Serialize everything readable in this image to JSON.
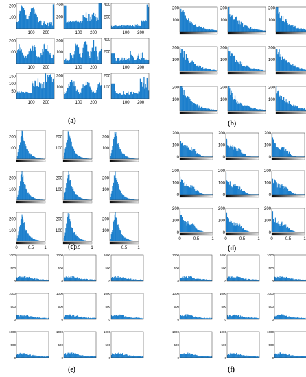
{
  "colors": {
    "bar": "#1c7fcc",
    "axis": "#333333"
  },
  "chart_data": [
    {
      "type": "bar",
      "label": "(a)",
      "grid": [
        3,
        3
      ],
      "xticks": [
        100,
        200
      ],
      "xlim": [
        0,
        255
      ],
      "cells": [
        {
          "yticks": [
            100,
            200
          ],
          "ylim": [
            0,
            220
          ],
          "profile": "a0"
        },
        {
          "yticks": [
            200,
            400
          ],
          "ylim": [
            0,
            420
          ],
          "profile": "a1"
        },
        {
          "yticks": [
            200,
            400
          ],
          "ylim": [
            0,
            420
          ],
          "profile": "a2"
        },
        {
          "yticks": [
            100,
            200
          ],
          "ylim": [
            0,
            220
          ],
          "profile": "a3"
        },
        {
          "yticks": [
            100,
            200
          ],
          "ylim": [
            0,
            220
          ],
          "profile": "a4"
        },
        {
          "yticks": [
            200,
            400
          ],
          "ylim": [
            0,
            420
          ],
          "profile": "a5"
        },
        {
          "yticks": [
            50,
            100,
            150
          ],
          "ylim": [
            0,
            170
          ],
          "profile": "a6"
        },
        {
          "yticks": [
            100,
            200
          ],
          "ylim": [
            0,
            220
          ],
          "profile": "a7"
        },
        {
          "yticks": [
            100,
            200
          ],
          "ylim": [
            0,
            220
          ],
          "profile": "a8"
        }
      ]
    },
    {
      "type": "bar",
      "label": "(b)",
      "grid": [
        3,
        3
      ],
      "xticks": [],
      "xlim": [
        0,
        1
      ],
      "cells": [
        {
          "yticks": [
            100,
            200
          ],
          "ylim": [
            0,
            210
          ],
          "profile": "decay"
        },
        {
          "yticks": [
            100,
            200
          ],
          "ylim": [
            0,
            210
          ],
          "profile": "decay"
        },
        {
          "yticks": [
            100,
            200
          ],
          "ylim": [
            0,
            210
          ],
          "profile": "decay"
        },
        {
          "yticks": [
            100,
            200
          ],
          "ylim": [
            0,
            210
          ],
          "profile": "decay"
        },
        {
          "yticks": [
            100,
            200
          ],
          "ylim": [
            0,
            210
          ],
          "profile": "decay"
        },
        {
          "yticks": [
            100,
            200
          ],
          "ylim": [
            0,
            210
          ],
          "profile": "decay"
        },
        {
          "yticks": [
            100,
            200
          ],
          "ylim": [
            0,
            210
          ],
          "profile": "decay"
        },
        {
          "yticks": [
            100,
            200
          ],
          "ylim": [
            0,
            210
          ],
          "profile": "decay"
        },
        {
          "yticks": [
            100,
            200
          ],
          "ylim": [
            0,
            210
          ],
          "profile": "decay"
        }
      ]
    },
    {
      "type": "bar",
      "label": "(c)",
      "grid": [
        3,
        3
      ],
      "xticks": [
        0.5,
        1
      ],
      "xticks_first_col": [
        0,
        0.5,
        1
      ],
      "xlim": [
        0,
        1
      ],
      "cells": [
        {
          "yticks": [
            100,
            200
          ],
          "ylim": [
            0,
            260
          ],
          "profile": "peak"
        },
        {
          "yticks": [
            100,
            200
          ],
          "ylim": [
            0,
            260
          ],
          "profile": "peak"
        },
        {
          "yticks": [
            100,
            200
          ],
          "ylim": [
            0,
            260
          ],
          "profile": "peak"
        },
        {
          "yticks": [
            100,
            200
          ],
          "ylim": [
            0,
            260
          ],
          "profile": "peak"
        },
        {
          "yticks": [
            100,
            200
          ],
          "ylim": [
            0,
            260
          ],
          "profile": "peak"
        },
        {
          "yticks": [
            100,
            200
          ],
          "ylim": [
            0,
            260
          ],
          "profile": "peak"
        },
        {
          "yticks": [
            100,
            200
          ],
          "ylim": [
            0,
            260
          ],
          "profile": "peak"
        },
        {
          "yticks": [
            100,
            200
          ],
          "ylim": [
            0,
            260
          ],
          "profile": "peak"
        },
        {
          "yticks": [
            100,
            200
          ],
          "ylim": [
            0,
            260
          ],
          "profile": "peak"
        }
      ]
    },
    {
      "type": "bar",
      "label": "(d)",
      "grid": [
        3,
        3
      ],
      "xticks": [
        0,
        0.5,
        1
      ],
      "xlim": [
        0,
        1
      ],
      "cells": [
        {
          "yticks": [
            0,
            100,
            200
          ],
          "ylim": [
            0,
            200
          ],
          "profile": "decay2"
        },
        {
          "yticks": [
            0,
            100,
            200
          ],
          "ylim": [
            0,
            200
          ],
          "profile": "decay2"
        },
        {
          "yticks": [
            0,
            100,
            200
          ],
          "ylim": [
            0,
            200
          ],
          "profile": "decay2"
        },
        {
          "yticks": [
            0,
            100,
            200
          ],
          "ylim": [
            0,
            200
          ],
          "profile": "decay2"
        },
        {
          "yticks": [
            0,
            100,
            200
          ],
          "ylim": [
            0,
            200
          ],
          "profile": "decay2"
        },
        {
          "yticks": [
            0,
            100,
            200
          ],
          "ylim": [
            0,
            200
          ],
          "profile": "decay2"
        },
        {
          "yticks": [
            0,
            100,
            200
          ],
          "ylim": [
            0,
            200
          ],
          "profile": "decay2"
        },
        {
          "yticks": [
            0,
            100,
            200
          ],
          "ylim": [
            0,
            200
          ],
          "profile": "decay2"
        },
        {
          "yticks": [
            0,
            100,
            200
          ],
          "ylim": [
            0,
            200
          ],
          "profile": "decay2"
        }
      ]
    },
    {
      "type": "bar",
      "label": "(e)",
      "grid": [
        3,
        3
      ],
      "xticks": [],
      "xlim": [
        0,
        1
      ],
      "cells": [
        {
          "yticks": [
            0,
            500,
            1000
          ],
          "ylim": [
            0,
            1000
          ],
          "profile": "flat"
        },
        {
          "yticks": [
            0,
            500,
            1000
          ],
          "ylim": [
            0,
            1000
          ],
          "profile": "flat"
        },
        {
          "yticks": [
            0,
            500,
            1000
          ],
          "ylim": [
            0,
            1000
          ],
          "profile": "flat"
        },
        {
          "yticks": [
            0,
            500,
            1000
          ],
          "ylim": [
            0,
            1000
          ],
          "profile": "flat"
        },
        {
          "yticks": [
            0,
            500,
            1000
          ],
          "ylim": [
            0,
            1000
          ],
          "profile": "flat"
        },
        {
          "yticks": [
            0,
            500,
            1000
          ],
          "ylim": [
            0,
            1000
          ],
          "profile": "flat"
        },
        {
          "yticks": [
            0,
            500,
            1000
          ],
          "ylim": [
            0,
            1000
          ],
          "profile": "flat"
        },
        {
          "yticks": [
            0,
            500,
            1000
          ],
          "ylim": [
            0,
            1000
          ],
          "profile": "flat"
        },
        {
          "yticks": [
            0,
            500,
            1000
          ],
          "ylim": [
            0,
            1000
          ],
          "profile": "flat"
        }
      ]
    },
    {
      "type": "bar",
      "label": "(f)",
      "grid": [
        3,
        3
      ],
      "xticks": [],
      "xlim": [
        0,
        1
      ],
      "cells": [
        {
          "yticks": [
            0,
            500,
            1000
          ],
          "ylim": [
            0,
            1000
          ],
          "profile": "flat"
        },
        {
          "yticks": [
            0,
            500,
            1000
          ],
          "ylim": [
            0,
            1000
          ],
          "profile": "flat"
        },
        {
          "yticks": [
            0,
            500,
            1000
          ],
          "ylim": [
            0,
            1000
          ],
          "profile": "flat"
        },
        {
          "yticks": [
            0,
            500,
            1000
          ],
          "ylim": [
            0,
            1000
          ],
          "profile": "flat"
        },
        {
          "yticks": [
            0,
            500,
            1000
          ],
          "ylim": [
            0,
            1000
          ],
          "profile": "flat"
        },
        {
          "yticks": [
            0,
            500,
            1000
          ],
          "ylim": [
            0,
            1000
          ],
          "profile": "flat"
        },
        {
          "yticks": [
            0,
            500,
            1000
          ],
          "ylim": [
            0,
            1000
          ],
          "profile": "flat"
        },
        {
          "yticks": [
            0,
            500,
            1000
          ],
          "ylim": [
            0,
            1000
          ],
          "profile": "flat"
        },
        {
          "yticks": [
            0,
            500,
            1000
          ],
          "ylim": [
            0,
            1000
          ],
          "profile": "flat"
        }
      ]
    }
  ]
}
